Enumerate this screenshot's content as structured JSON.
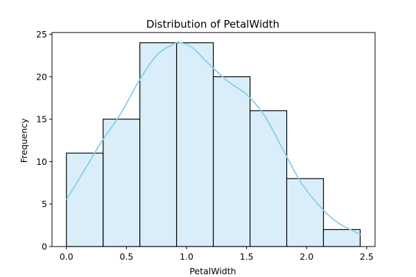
{
  "chart_data": {
    "type": "bar",
    "title": "Distribution of PetalWidth",
    "xlabel": "PetalWidth",
    "ylabel": "Frequency",
    "bins": [
      {
        "x0": 0.0,
        "x1": 0.3057,
        "count": 11
      },
      {
        "x0": 0.3057,
        "x1": 0.6114,
        "count": 15
      },
      {
        "x0": 0.6114,
        "x1": 0.9171,
        "count": 24
      },
      {
        "x0": 0.9171,
        "x1": 1.2229,
        "count": 24
      },
      {
        "x0": 1.2229,
        "x1": 1.5286,
        "count": 20
      },
      {
        "x0": 1.5286,
        "x1": 1.8343,
        "count": 16
      },
      {
        "x0": 1.8343,
        "x1": 2.14,
        "count": 8
      },
      {
        "x0": 2.14,
        "x1": 2.4457,
        "count": 2
      }
    ],
    "kde": {
      "x": [
        0.0,
        0.15,
        0.3,
        0.45,
        0.6,
        0.75,
        0.9,
        0.95,
        1.05,
        1.2,
        1.35,
        1.5,
        1.65,
        1.8,
        1.95,
        2.1,
        2.25,
        2.45
      ],
      "y": [
        5.5,
        9.0,
        12.5,
        15.6,
        19.4,
        22.5,
        23.9,
        24.0,
        23.4,
        21.3,
        19.4,
        17.9,
        15.4,
        11.5,
        7.6,
        4.9,
        2.9,
        1.4
      ]
    },
    "xlim": [
      -0.12,
      2.57
    ],
    "ylim": [
      0,
      25.2
    ],
    "xticks": [
      0.0,
      0.5,
      1.0,
      1.5,
      2.0,
      2.5
    ],
    "xtick_labels": [
      "0.0",
      "0.5",
      "1.0",
      "1.5",
      "2.0",
      "2.5"
    ],
    "yticks": [
      0,
      5,
      10,
      15,
      20,
      25
    ],
    "ytick_labels": [
      "0",
      "5",
      "10",
      "15",
      "20",
      "25"
    ],
    "grid": false,
    "colors": {
      "bar_fill": "#d9eef8",
      "bar_edge": "#000000",
      "kde_line": "#87ceeb"
    }
  }
}
